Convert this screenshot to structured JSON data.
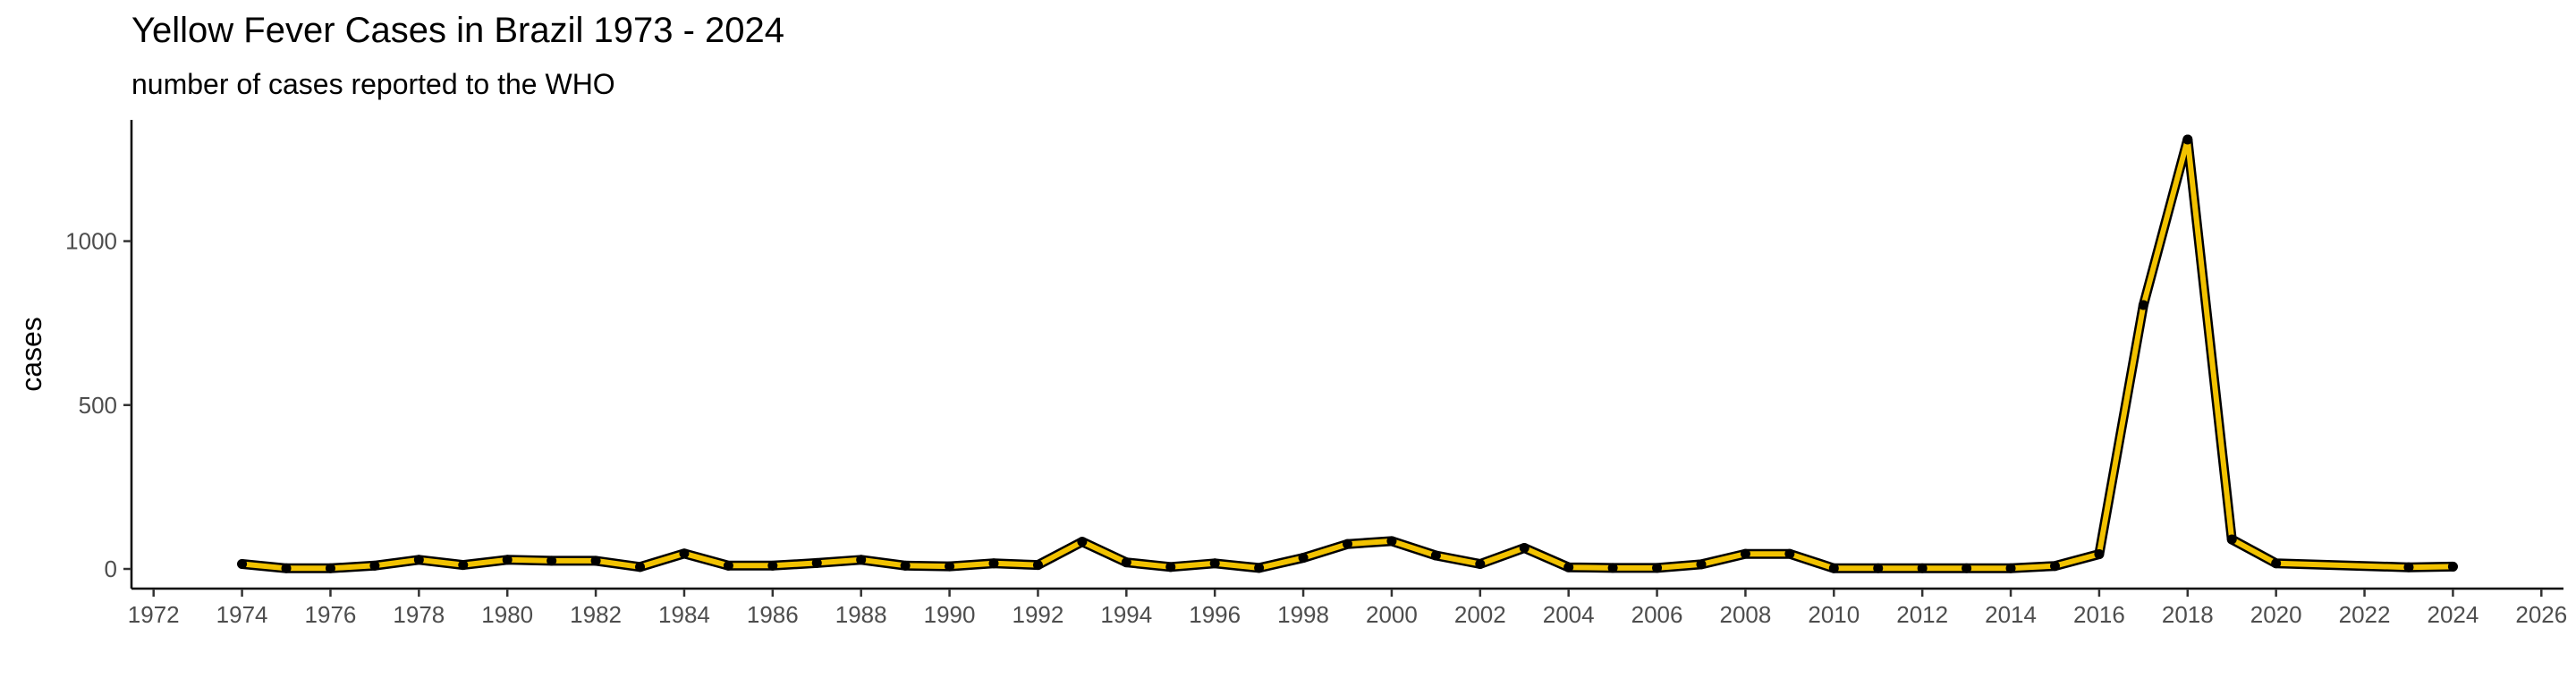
{
  "chart_data": {
    "type": "line",
    "title": "Yellow Fever Cases in Brazil 1973 - 2024",
    "subtitle": "number of cases reported to the WHO",
    "xlabel": "",
    "ylabel": "cases",
    "xlim": [
      1971.5,
      2026.5
    ],
    "ylim": [
      -60,
      1370
    ],
    "xticks": [
      1972,
      1974,
      1976,
      1978,
      1980,
      1982,
      1984,
      1986,
      1988,
      1990,
      1992,
      1994,
      1996,
      1998,
      2000,
      2002,
      2004,
      2006,
      2008,
      2010,
      2012,
      2014,
      2016,
      2018,
      2020,
      2022,
      2024,
      2026
    ],
    "yticks": [
      0,
      500,
      1000
    ],
    "grid": false,
    "legend": "none",
    "line_color": "#f2c200",
    "outline_color": "#000000",
    "point_color": "#000000",
    "x": [
      1974,
      1975,
      1976,
      1977,
      1978,
      1979,
      1980,
      1981,
      1982,
      1983,
      1984,
      1985,
      1986,
      1987,
      1988,
      1989,
      1990,
      1991,
      1992,
      1993,
      1994,
      1995,
      1996,
      1997,
      1998,
      1999,
      2000,
      2001,
      2002,
      2003,
      2004,
      2005,
      2006,
      2007,
      2008,
      2009,
      2010,
      2011,
      2012,
      2013,
      2014,
      2015,
      2016,
      2017,
      2018,
      2019,
      2020,
      2023,
      2024
    ],
    "y": [
      15,
      2,
      2,
      10,
      28,
      12,
      28,
      25,
      25,
      6,
      47,
      10,
      10,
      18,
      28,
      10,
      8,
      17,
      12,
      83,
      20,
      6,
      17,
      3,
      34,
      76,
      85,
      41,
      15,
      64,
      5,
      3,
      3,
      14,
      46,
      46,
      2,
      2,
      2,
      2,
      2,
      9,
      45,
      805,
      1310,
      90,
      17,
      5,
      7
    ]
  }
}
